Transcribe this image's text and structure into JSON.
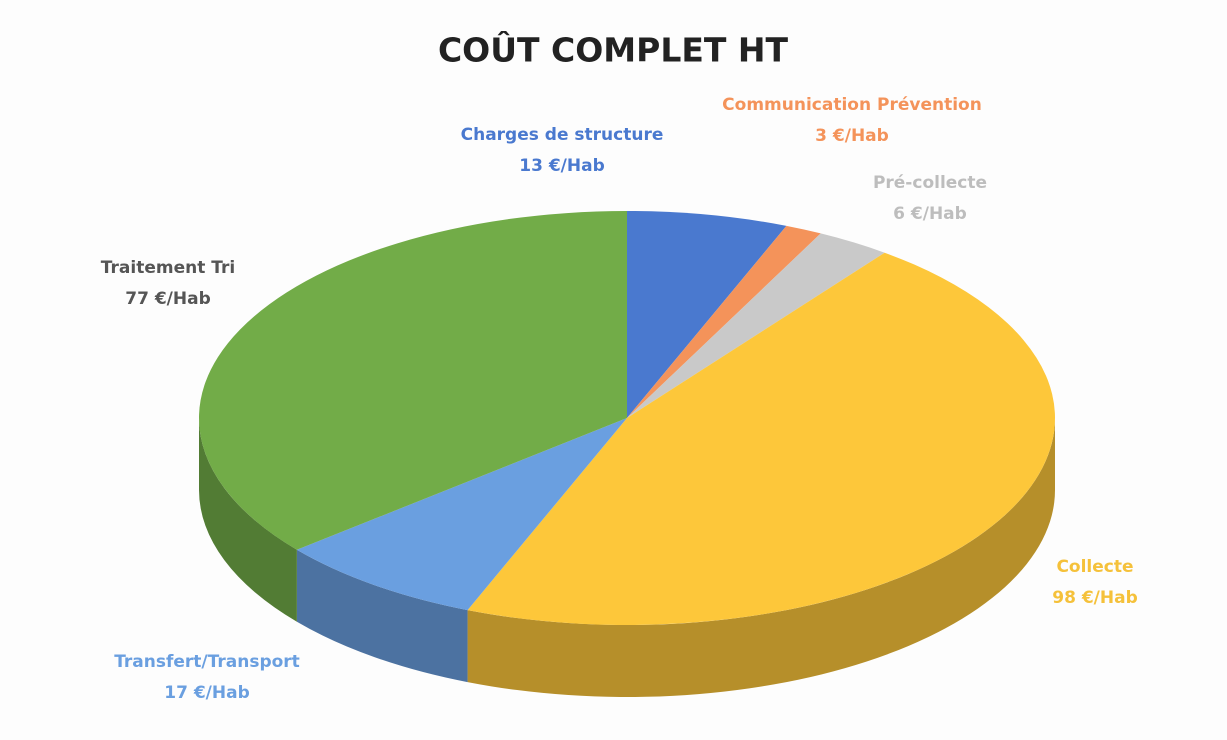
{
  "chart_data": {
    "type": "pie",
    "title": "COÛT COMPLET HT",
    "categories": [
      "Charges de structure",
      "Communication Prévention",
      "Pré-collecte",
      "Collecte",
      "Transfert/Transport",
      "Traitement Tri"
    ],
    "values": [
      13,
      3,
      6,
      98,
      17,
      77
    ],
    "value_labels": [
      "13 €/Hab",
      "3 €/Hab",
      "6 €/Hab",
      "98 €/Hab",
      "17 €/Hab",
      "77 €/Hab"
    ],
    "colors": [
      "#4a79cf",
      "#f4935a",
      "#c9c9c9",
      "#fdc73a",
      "#6a9fe0",
      "#72ac48"
    ]
  }
}
